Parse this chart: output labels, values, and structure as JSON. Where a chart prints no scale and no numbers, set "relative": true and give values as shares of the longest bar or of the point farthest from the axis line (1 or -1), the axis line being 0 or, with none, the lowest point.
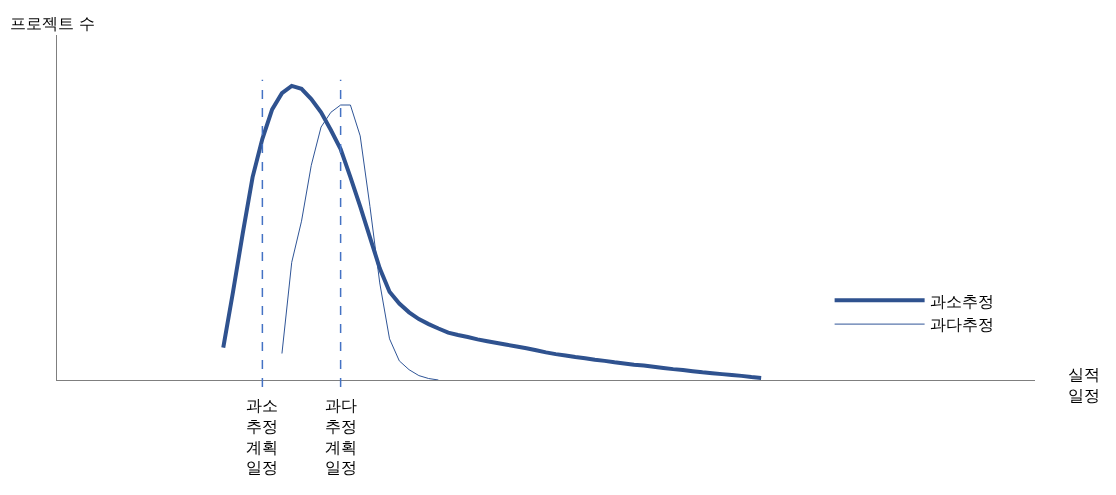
{
  "chart_data": {
    "type": "line",
    "relative": true,
    "ylabel": "프로젝트 수",
    "xlabel": "실적\n일정",
    "legend": "right",
    "marker": "none",
    "categories": [
      null,
      null,
      null,
      null,
      null,
      null,
      null,
      null,
      null,
      null,
      null,
      null,
      null,
      null,
      null,
      null,
      null,
      null,
      null,
      null,
      null,
      null,
      null,
      null,
      null,
      null,
      null,
      null,
      null,
      null,
      null,
      null,
      null,
      null,
      null,
      null,
      null,
      null,
      null,
      null,
      null,
      null,
      null,
      null,
      null,
      null,
      null,
      null,
      null,
      null,
      null,
      null,
      null,
      null,
      null,
      null,
      null,
      null,
      null,
      null,
      null,
      null,
      null,
      null,
      null,
      null,
      null,
      null,
      null,
      null,
      null,
      null,
      null,
      null,
      null,
      null,
      null,
      null,
      null,
      null,
      null,
      null,
      null,
      null,
      null,
      null,
      null,
      null,
      null,
      null,
      null,
      null,
      null,
      null,
      null,
      null,
      null,
      null,
      null,
      null,
      null
    ],
    "series": [
      {
        "name": "과소추정",
        "color": "#2f528f",
        "values": [
          null,
          null,
          null,
          null,
          null,
          null,
          null,
          null,
          null,
          null,
          null,
          null,
          null,
          null,
          null,
          null,
          null,
          0.11,
          0.3,
          0.5,
          0.69,
          0.82,
          0.92,
          0.975,
          1,
          0.99,
          0.955,
          0.91,
          0.85,
          0.785,
          0.69,
          0.59,
          0.485,
          0.38,
          0.3,
          0.26,
          0.23,
          0.207,
          0.19,
          0.175,
          0.161,
          0.153,
          0.146,
          0.138,
          0.132,
          0.126,
          0.12,
          0.114,
          0.108,
          0.101,
          0.094,
          0.088,
          0.083,
          0.078,
          0.074,
          0.069,
          0.065,
          0.06,
          0.056,
          0.052,
          0.049,
          0.045,
          0.041,
          0.037,
          0.034,
          0.03,
          0.026,
          0.023,
          0.02,
          0.017,
          0.014,
          0.01,
          0.007,
          null,
          null,
          null,
          null,
          null,
          null,
          null,
          null,
          null,
          null,
          null,
          null,
          null,
          null,
          null,
          null,
          null,
          null,
          null,
          null,
          null,
          null,
          null,
          null,
          null,
          null,
          null,
          null
        ]
      },
      {
        "name": "과다추정",
        "color": "#2f5597",
        "values": [
          null,
          null,
          null,
          null,
          null,
          null,
          null,
          null,
          null,
          null,
          null,
          null,
          null,
          null,
          null,
          null,
          null,
          null,
          null,
          null,
          null,
          null,
          null,
          0.09,
          0.4,
          0.54,
          0.73,
          0.86,
          0.91,
          0.935,
          0.935,
          0.83,
          0.59,
          0.33,
          0.14,
          0.065,
          0.035,
          0.015,
          0.005,
          0,
          null,
          null,
          null,
          null,
          null,
          null,
          null,
          null,
          null,
          null,
          null,
          null,
          null,
          null,
          null,
          null,
          null,
          null,
          null,
          null,
          null,
          null,
          null,
          null,
          null,
          null,
          null,
          null,
          null,
          null,
          null,
          null,
          null,
          null,
          null,
          null,
          null,
          null,
          null,
          null,
          null,
          null,
          null,
          null,
          null,
          null,
          null,
          null,
          null,
          null,
          null,
          null,
          null,
          null,
          null,
          null,
          null,
          null,
          null,
          null,
          null
        ]
      }
    ],
    "annotations": [
      "과소\n추정\n계획\n일정",
      "과다\n추정\n계획\n일정"
    ]
  }
}
